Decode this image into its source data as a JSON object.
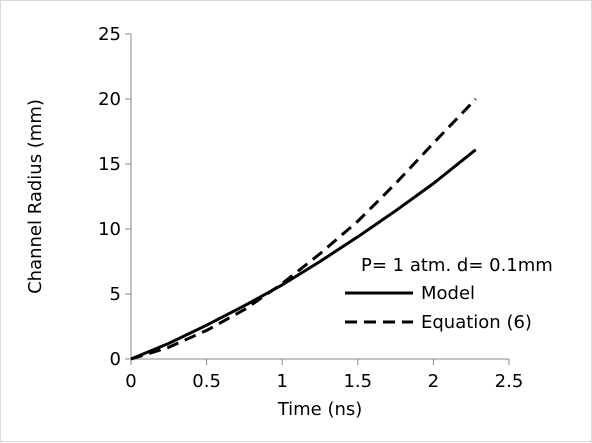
{
  "chart_data": {
    "type": "line",
    "title": "",
    "xlabel": "Time (ns)",
    "ylabel": "Channel Radius (mm)",
    "xlim": [
      0,
      2.5
    ],
    "ylim": [
      0,
      25
    ],
    "x_ticks": [
      0,
      0.5,
      1,
      1.5,
      2,
      2.5
    ],
    "y_ticks": [
      0,
      5,
      10,
      15,
      20,
      25
    ],
    "x_tick_labels": [
      "0",
      "0.5",
      "1",
      "1.5",
      "2",
      "2.5"
    ],
    "y_tick_labels": [
      "0",
      "5",
      "10",
      "15",
      "20",
      "25"
    ],
    "grid": false,
    "legend_placement": "center-right",
    "annotation": "P= 1 atm.  d= 0.1mm",
    "series": [
      {
        "name": "Model",
        "style": "solid",
        "color": "#000000",
        "x": [
          0,
          0.25,
          0.5,
          0.75,
          1.0,
          1.25,
          1.5,
          1.75,
          2.0,
          2.28
        ],
        "y": [
          0,
          1.2,
          2.6,
          4.1,
          5.7,
          7.5,
          9.4,
          11.4,
          13.5,
          16.1
        ]
      },
      {
        "name": "Equation (6)",
        "style": "dashed",
        "color": "#000000",
        "x": [
          0,
          0.25,
          0.5,
          0.75,
          1.0,
          1.25,
          1.5,
          1.75,
          2.0,
          2.28
        ],
        "y": [
          0,
          0.9,
          2.2,
          3.8,
          5.8,
          8.1,
          10.6,
          13.5,
          16.6,
          20.0
        ]
      }
    ]
  }
}
